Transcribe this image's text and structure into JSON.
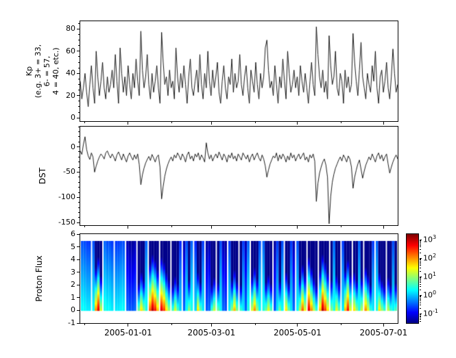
{
  "figure": {
    "background": "#ffffff",
    "text_color": "#000000"
  },
  "x_axis": {
    "range_days": [
      0,
      225
    ],
    "tick_days": [
      34,
      93,
      154,
      215
    ],
    "tick_labels": [
      "2005-01-01",
      "2005-03-01",
      "2005-05-01",
      "2005-07-01"
    ],
    "minor_tick_days": [
      3,
      65,
      124,
      185
    ]
  },
  "colorbar": {
    "scale": "log10",
    "colormap": "jet",
    "tick_exponents": [
      3,
      2,
      1,
      0,
      -1
    ],
    "range_exponents": [
      -1.5,
      3.3
    ]
  },
  "chart_data": [
    {
      "type": "line",
      "name": "kp",
      "ylabel": "Kp (e.g. 3+ = 33, 6- = 57, 4 = 40, etc.)",
      "ylabel_lines": [
        "Kp",
        "(e.g. 3+ = 33,",
        "6- = 57,",
        "4 = 40, etc.)"
      ],
      "ylim": [
        -3,
        87
      ],
      "yticks": [
        0,
        20,
        40,
        60,
        80
      ],
      "minor_tick_step": 5,
      "line_color": "#000000",
      "grid": false,
      "values": [
        33,
        17,
        27,
        40,
        23,
        10,
        30,
        47,
        27,
        13,
        60,
        37,
        20,
        33,
        50,
        27,
        17,
        37,
        23,
        30,
        43,
        27,
        57,
        33,
        13,
        63,
        40,
        23,
        37,
        20,
        47,
        30,
        17,
        40,
        27,
        53,
        33,
        20,
        78,
        43,
        27,
        37,
        57,
        30,
        17,
        40,
        23,
        33,
        47,
        27,
        13,
        77,
        50,
        30,
        37,
        20,
        43,
        27,
        33,
        17,
        63,
        37,
        23,
        40,
        27,
        47,
        30,
        13,
        37,
        53,
        27,
        20,
        33,
        43,
        23,
        57,
        30,
        17,
        40,
        27,
        60,
        33,
        20,
        43,
        27,
        37,
        50,
        23,
        13,
        33,
        47,
        27,
        17,
        37,
        30,
        53,
        23,
        40,
        27,
        33,
        57,
        30,
        20,
        37,
        47,
        27,
        13,
        43,
        33,
        23,
        50,
        30,
        17,
        40,
        27,
        37,
        63,
        70,
        43,
        27,
        33,
        20,
        47,
        30,
        13,
        37,
        27,
        53,
        33,
        17,
        60,
        40,
        23,
        30,
        43,
        27,
        37,
        20,
        47,
        33,
        23,
        40,
        27,
        13,
        33,
        50,
        30,
        20,
        82,
        57,
        37,
        27,
        43,
        23,
        33,
        17,
        74,
        47,
        30,
        37,
        60,
        27,
        20,
        40,
        33,
        13,
        43,
        27,
        37,
        23,
        30,
        76,
        50,
        33,
        20,
        43,
        68,
        37,
        27,
        17,
        40,
        30,
        23,
        47,
        33,
        60,
        27,
        13,
        37,
        43,
        23,
        33,
        50,
        27,
        17,
        37,
        62,
        40,
        23,
        30
      ]
    },
    {
      "type": "line",
      "name": "dst",
      "ylabel": "DST",
      "ylim": [
        -155,
        40
      ],
      "yticks": [
        0,
        -50,
        -100,
        -150
      ],
      "minor_tick_step": 10,
      "line_color": "#000000",
      "grid": false,
      "values": [
        -8,
        -15,
        5,
        20,
        -5,
        -18,
        -25,
        -12,
        -20,
        -50,
        -38,
        -28,
        -20,
        -14,
        -18,
        -24,
        -12,
        -8,
        -16,
        -22,
        -14,
        -20,
        -28,
        -16,
        -10,
        -18,
        -26,
        -14,
        -22,
        -30,
        -18,
        -12,
        -20,
        -26,
        -16,
        -24,
        -14,
        -35,
        -75,
        -55,
        -42,
        -32,
        -25,
        -19,
        -27,
        -15,
        -22,
        -30,
        -20,
        -16,
        -40,
        -103,
        -78,
        -58,
        -44,
        -34,
        -26,
        -20,
        -28,
        -16,
        -22,
        -12,
        -18,
        -26,
        -14,
        -20,
        -30,
        -16,
        -10,
        -24,
        -18,
        -28,
        -14,
        -20,
        -12,
        -26,
        -16,
        -22,
        -30,
        8,
        -12,
        -24,
        -16,
        -28,
        -20,
        -14,
        -22,
        -10,
        -18,
        -26,
        -14,
        -20,
        -30,
        -16,
        -22,
        -12,
        -24,
        -18,
        -28,
        -14,
        -20,
        -26,
        -12,
        -18,
        -24,
        -16,
        -30,
        -20,
        -14,
        -26,
        -18,
        -12,
        -22,
        -28,
        -16,
        -24,
        -38,
        -60,
        -46,
        -34,
        -26,
        -18,
        -22,
        -12,
        -28,
        -16,
        -24,
        -14,
        -20,
        -30,
        -18,
        -26,
        -12,
        -22,
        -16,
        -28,
        -20,
        -14,
        -24,
        -18,
        -12,
        -26,
        -20,
        -30,
        -16,
        -22,
        -14,
        -28,
        -108,
        -72,
        -52,
        -40,
        -30,
        -24,
        -36,
        -60,
        -152,
        -98,
        -70,
        -54,
        -42,
        -34,
        -26,
        -20,
        -28,
        -16,
        -22,
        -30,
        -18,
        -24,
        -40,
        -82,
        -60,
        -46,
        -34,
        -26,
        -44,
        -62,
        -48,
        -36,
        -28,
        -20,
        -26,
        -14,
        -22,
        -30,
        -18,
        -12,
        -24,
        -16,
        -28,
        -20,
        -14,
        -34,
        -52,
        -40,
        -30,
        -22,
        -16,
        -24
      ]
    },
    {
      "type": "heatmap",
      "name": "proton_flux",
      "ylabel": "Proton Flux",
      "ylim": [
        -1,
        6
      ],
      "yticks": [
        6,
        5,
        4,
        3,
        2,
        1,
        0,
        -1
      ],
      "colormap": "jet",
      "y_extent": [
        0,
        5.5
      ],
      "log10_flux_range": [
        -1.3,
        3.4
      ],
      "segments": 28,
      "subcolumns_per_segment": 4,
      "quiet_threshold": 0.6,
      "burst_decay_per_y": 1.0,
      "quiet_decay_per_y": 0.16,
      "segment_bottom_log10_flux": [
        [
          0.5,
          0.5,
          0.4,
          0.4
        ],
        [
          0.5,
          2.2,
          3.0,
          1.5
        ],
        [
          0.6,
          0.5,
          0.5,
          0.4
        ],
        [
          0.4,
          0.4,
          0.5,
          0.5
        ],
        [
          -0.2,
          -0.3,
          -0.3,
          -0.2
        ],
        [
          1.0,
          1.8,
          1.2,
          0.6
        ],
        [
          2.5,
          3.2,
          2.8,
          2.0
        ],
        [
          3.0,
          2.6,
          1.8,
          1.2
        ],
        [
          0.8,
          1.5,
          0.9,
          0.3
        ],
        [
          -0.2,
          0.5,
          1.2,
          0.6
        ],
        [
          0.3,
          1.8,
          1.0,
          0.4
        ],
        [
          -0.3,
          -0.2,
          0.8,
          1.4
        ],
        [
          1.0,
          0.5,
          -0.2,
          -0.3
        ],
        [
          0.4,
          1.2,
          2.0,
          1.1
        ],
        [
          0.8,
          0.4,
          -0.2,
          0.6
        ],
        [
          1.5,
          2.2,
          1.3,
          0.5
        ],
        [
          0.6,
          1.0,
          1.6,
          0.9
        ],
        [
          -0.3,
          0.4,
          1.1,
          0.5
        ],
        [
          1.8,
          1.0,
          0.4,
          -0.2
        ],
        [
          0.5,
          1.4,
          2.4,
          1.6
        ],
        [
          3.0,
          2.2,
          1.4,
          0.8
        ],
        [
          2.0,
          3.2,
          2.6,
          1.8
        ],
        [
          1.2,
          0.6,
          1.6,
          1.0
        ],
        [
          0.4,
          2.0,
          2.8,
          1.6
        ],
        [
          1.8,
          1.2,
          0.6,
          1.4
        ],
        [
          2.2,
          1.6,
          0.8,
          0.4
        ],
        [
          0.6,
          1.8,
          1.2,
          0.8
        ],
        [
          1.4,
          0.8,
          0.5,
          0.9
        ]
      ]
    }
  ]
}
